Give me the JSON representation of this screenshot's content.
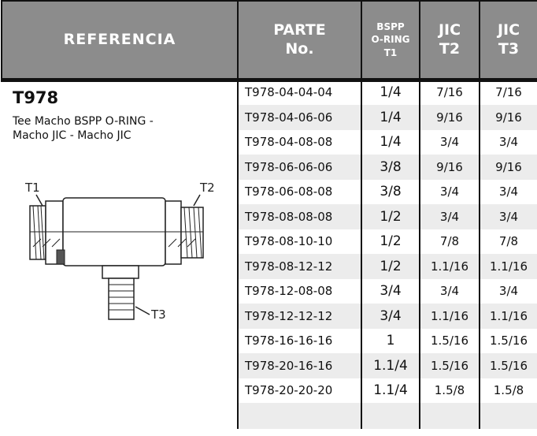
{
  "header": {
    "referencia": "REFERENCIA",
    "parte": [
      "PARTE",
      "No."
    ],
    "bspp": [
      "BSPP",
      "O-RING",
      "T1"
    ],
    "jic_t2": [
      "JIC",
      "T2"
    ],
    "jic_t3": [
      "JIC",
      "T3"
    ]
  },
  "product": {
    "code": "T978",
    "description": [
      "Tee Macho BSPP O-RING -",
      "Macho JIC - Macho JIC"
    ],
    "labels": [
      "T1",
      "T2",
      "T3"
    ]
  },
  "table": {
    "rows": [
      [
        "T978-04-04-04",
        "1/4",
        "7/16",
        "7/16"
      ],
      [
        "T978-04-06-06",
        "1/4",
        "9/16",
        "9/16"
      ],
      [
        "T978-04-08-08",
        "1/4",
        "3/4",
        "3/4"
      ],
      [
        "T978-06-06-06",
        "3/8",
        "9/16",
        "9/16"
      ],
      [
        "T978-06-08-08",
        "3/8",
        "3/4",
        "3/4"
      ],
      [
        "T978-08-08-08",
        "1/2",
        "3/4",
        "3/4"
      ],
      [
        "T978-08-10-10",
        "1/2",
        "7/8",
        "7/8"
      ],
      [
        "T978-08-12-12",
        "1/2",
        "1.1/16",
        "1.1/16"
      ],
      [
        "T978-12-08-08",
        "3/4",
        "3/4",
        "3/4"
      ],
      [
        "T978-12-12-12",
        "3/4",
        "1.1/16",
        "1.1/16"
      ],
      [
        "T978-16-16-16",
        "1",
        "1.5/16",
        "1.5/16"
      ],
      [
        "T978-20-16-16",
        "1.1/4",
        "1.5/16",
        "1.5/16"
      ],
      [
        "T978-20-20-20",
        "1.1/4",
        "1.5/8",
        "1.5/8"
      ]
    ]
  }
}
